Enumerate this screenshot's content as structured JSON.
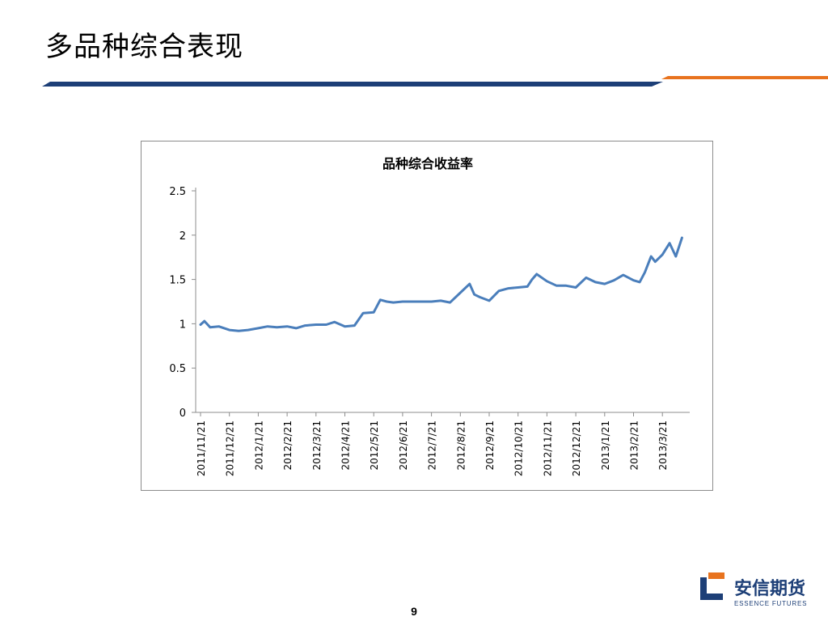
{
  "slide": {
    "title": "多品种综合表现",
    "page_number": "9"
  },
  "logo": {
    "name_cn": "安信期货",
    "name_en": "ESSENCE FUTURES"
  },
  "colors": {
    "title_bar_blue": "#1d3f77",
    "title_bar_orange": "#e8731e",
    "series_line": "#4a7ebb",
    "axis": "#8c8c8c"
  },
  "chart_data": {
    "type": "line",
    "title": "品种综合收益率",
    "xlabel": "",
    "ylabel": "",
    "ylim": [
      0,
      2.5
    ],
    "yticks": [
      "0",
      "0.5",
      "1",
      "1.5",
      "2",
      "2.5"
    ],
    "x_tick_labels": [
      "2011/11/21",
      "2011/12/21",
      "2012/1/21",
      "2012/2/21",
      "2012/3/21",
      "2012/4/21",
      "2012/5/21",
      "2012/6/21",
      "2012/7/21",
      "2012/8/21",
      "2012/9/21",
      "2012/10/21",
      "2012/11/21",
      "2012/12/21",
      "2013/1/21",
      "2013/2/21",
      "2013/3/21"
    ],
    "grid": false,
    "legend": "none",
    "series": [
      {
        "x": [
          "2011/11/21",
          "2011/11/25",
          "2011/12/1",
          "2011/12/10",
          "2011/12/21",
          "2011/12/31",
          "2012/1/10",
          "2012/1/21",
          "2012/1/31",
          "2012/2/10",
          "2012/2/21",
          "2012/3/1",
          "2012/3/10",
          "2012/3/21",
          "2012/4/1",
          "2012/4/10",
          "2012/4/21",
          "2012/5/1",
          "2012/5/10",
          "2012/5/21",
          "2012/5/28",
          "2012/6/4",
          "2012/6/11",
          "2012/6/21",
          "2012/7/1",
          "2012/7/11",
          "2012/7/21",
          "2012/7/31",
          "2012/8/10",
          "2012/8/21",
          "2012/8/31",
          "2012/9/5",
          "2012/9/11",
          "2012/9/21",
          "2012/10/1",
          "2012/10/11",
          "2012/10/21",
          "2012/10/31",
          "2012/11/5",
          "2012/11/10",
          "2012/11/21",
          "2012/12/1",
          "2012/12/11",
          "2012/12/21",
          "2013/1/1",
          "2013/1/11",
          "2013/1/21",
          "2013/1/31",
          "2013/2/10",
          "2013/2/21",
          "2013/2/27",
          "2013/3/4",
          "2013/3/10",
          "2013/3/14",
          "2013/3/21",
          "2013/3/28",
          "2013/4/3",
          "2013/4/9"
        ],
        "values": [
          0.99,
          1.03,
          0.96,
          0.97,
          0.93,
          0.92,
          0.93,
          0.95,
          0.97,
          0.96,
          0.97,
          0.95,
          0.98,
          0.99,
          0.99,
          1.02,
          0.97,
          0.98,
          1.12,
          1.13,
          1.27,
          1.25,
          1.24,
          1.25,
          1.25,
          1.25,
          1.25,
          1.26,
          1.24,
          1.35,
          1.45,
          1.33,
          1.3,
          1.26,
          1.37,
          1.4,
          1.41,
          1.42,
          1.5,
          1.56,
          1.48,
          1.43,
          1.43,
          1.41,
          1.52,
          1.47,
          1.45,
          1.49,
          1.55,
          1.49,
          1.47,
          1.58,
          1.76,
          1.7,
          1.78,
          1.91,
          1.76,
          1.97
        ]
      }
    ]
  }
}
